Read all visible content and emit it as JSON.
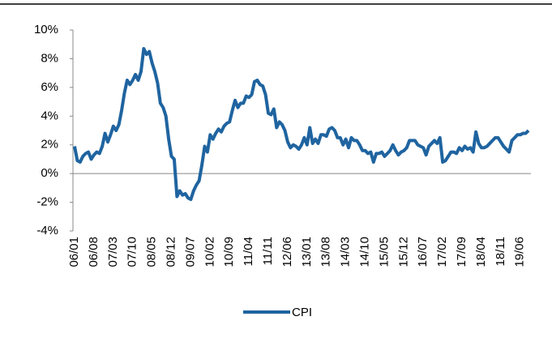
{
  "chart_data": {
    "type": "line",
    "categories": [
      "06/01",
      null,
      null,
      null,
      null,
      null,
      null,
      "06/08",
      null,
      null,
      null,
      null,
      null,
      null,
      "07/03",
      null,
      null,
      null,
      null,
      null,
      null,
      "07/10",
      null,
      null,
      null,
      null,
      null,
      null,
      "08/05",
      null,
      null,
      null,
      null,
      null,
      null,
      "08/12",
      null,
      null,
      null,
      null,
      null,
      null,
      "09/07",
      null,
      null,
      null,
      null,
      null,
      null,
      "10/02",
      null,
      null,
      null,
      null,
      null,
      null,
      "10/09",
      null,
      null,
      null,
      null,
      null,
      null,
      "11/04",
      null,
      null,
      null,
      null,
      null,
      null,
      "11/11",
      null,
      null,
      null,
      null,
      null,
      null,
      "12/06",
      null,
      null,
      null,
      null,
      null,
      null,
      "13/01",
      null,
      null,
      null,
      null,
      null,
      null,
      "13/08",
      null,
      null,
      null,
      null,
      null,
      null,
      "14/03",
      null,
      null,
      null,
      null,
      null,
      null,
      "14/10",
      null,
      null,
      null,
      null,
      null,
      null,
      "15/05",
      null,
      null,
      null,
      null,
      null,
      null,
      "15/12",
      null,
      null,
      null,
      null,
      null,
      null,
      "16/07",
      null,
      null,
      null,
      null,
      null,
      null,
      "17/02",
      null,
      null,
      null,
      null,
      null,
      null,
      "17/09",
      null,
      null,
      null,
      null,
      null,
      null,
      "18/04",
      null,
      null,
      null,
      null,
      null,
      null,
      "18/11",
      null,
      null,
      null,
      null,
      null,
      null,
      "19/06",
      null,
      null,
      null
    ],
    "series": [
      {
        "name": "CPI",
        "color": "#1f64a0",
        "values": [
          1.9,
          0.9,
          0.8,
          1.2,
          1.4,
          1.5,
          1.0,
          1.3,
          1.5,
          1.4,
          1.9,
          2.8,
          2.2,
          2.7,
          3.3,
          3.0,
          3.4,
          4.4,
          5.6,
          6.5,
          6.2,
          6.5,
          6.9,
          6.5,
          7.1,
          8.7,
          8.3,
          8.5,
          7.7,
          7.1,
          6.3,
          4.9,
          4.6,
          4.0,
          2.4,
          1.2,
          1.0,
          -1.6,
          -1.2,
          -1.5,
          -1.4,
          -1.7,
          -1.8,
          -1.2,
          -0.8,
          -0.5,
          0.6,
          1.9,
          1.5,
          2.7,
          2.4,
          2.8,
          3.1,
          2.9,
          3.3,
          3.5,
          3.6,
          4.4,
          5.1,
          4.6,
          4.9,
          4.9,
          5.4,
          5.3,
          5.5,
          6.4,
          6.5,
          6.2,
          6.1,
          5.5,
          4.2,
          4.1,
          4.5,
          3.2,
          3.6,
          3.4,
          3.0,
          2.2,
          1.8,
          2.0,
          1.9,
          1.7,
          2.0,
          2.5,
          2.0,
          3.2,
          2.1,
          2.4,
          2.1,
          2.7,
          2.7,
          2.6,
          3.1,
          3.2,
          3.0,
          2.5,
          2.5,
          2.0,
          2.4,
          1.8,
          2.5,
          2.3,
          2.3,
          2.0,
          1.6,
          1.6,
          1.4,
          1.5,
          0.8,
          1.4,
          1.4,
          1.5,
          1.2,
          1.4,
          1.6,
          2.0,
          1.6,
          1.3,
          1.5,
          1.6,
          1.8,
          2.3,
          2.3,
          2.3,
          2.0,
          1.9,
          1.8,
          1.3,
          1.9,
          2.1,
          2.3,
          2.1,
          2.5,
          0.8,
          0.9,
          1.2,
          1.5,
          1.5,
          1.4,
          1.8,
          1.6,
          1.9,
          1.7,
          1.8,
          1.5,
          2.9,
          2.1,
          1.8,
          1.8,
          1.9,
          2.1,
          2.3,
          2.5,
          2.5,
          2.2,
          1.9,
          1.7,
          1.5,
          2.3,
          2.5,
          2.7,
          2.7,
          2.8,
          2.8,
          3.0
        ]
      }
    ],
    "ylim": [
      -4,
      10
    ],
    "yticks": [
      {
        "value": -4,
        "label": "-4%"
      },
      {
        "value": -2,
        "label": "-2%"
      },
      {
        "value": 0,
        "label": "0%"
      },
      {
        "value": 2,
        "label": "2%"
      },
      {
        "value": 4,
        "label": "4%"
      },
      {
        "value": 6,
        "label": "6%"
      },
      {
        "value": 8,
        "label": "8%"
      },
      {
        "value": 10,
        "label": "10%"
      }
    ],
    "legend": "bottom"
  }
}
